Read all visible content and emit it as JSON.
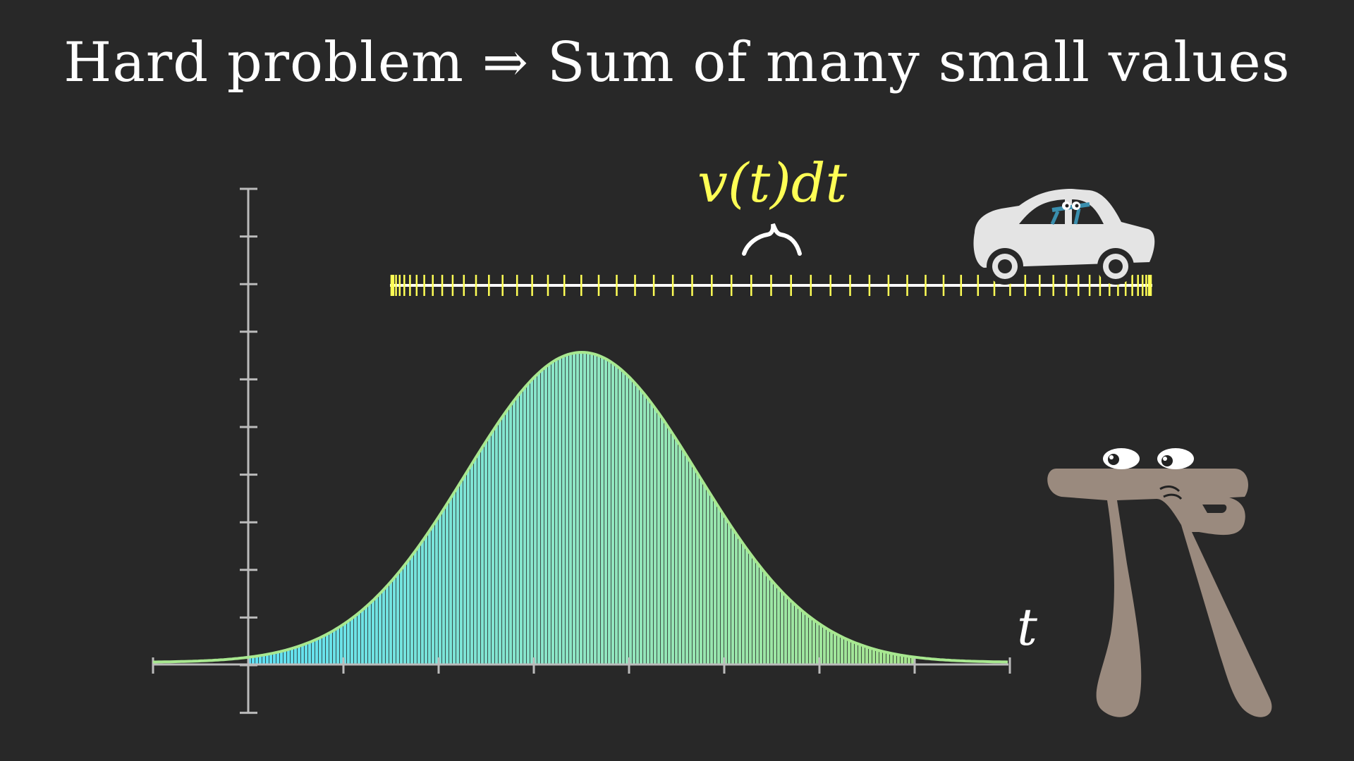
{
  "title": "Hard problem ⇒ Sum of many small values",
  "annotation": "v(t)dt",
  "axis_variable": "t",
  "icons": [
    "car-icon",
    "pi-creature-icon",
    "curly-brace-icon"
  ],
  "colors": {
    "background": "#282828",
    "annotation": "#ffff55",
    "ticks": "#ffff55",
    "curve": "#a8e890",
    "bar_gradient_start": "#5ee0f5",
    "bar_gradient_end": "#a6e58e",
    "axes": "#bbbbbb",
    "pi_creature": "#9a8a7e",
    "car_body": "#e4e4e4"
  },
  "chart_data": {
    "type": "area",
    "curve": "bell",
    "x_axis_ticks": 9,
    "y_axis_ticks": 11,
    "bars": "many thin rectangles approximating area under curve"
  }
}
